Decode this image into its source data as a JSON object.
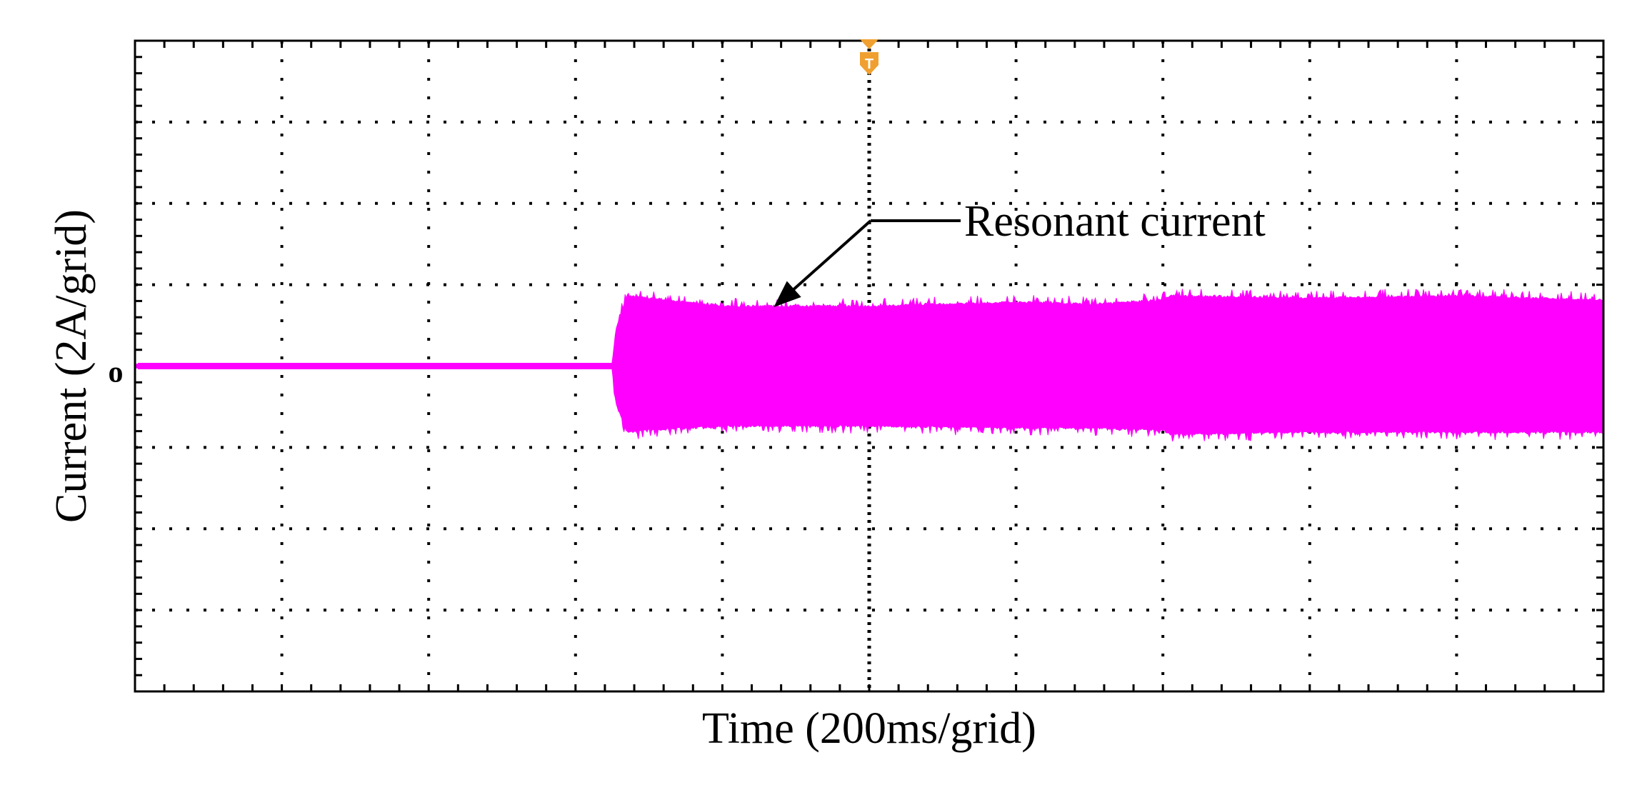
{
  "chart_data": {
    "type": "line",
    "title": "",
    "xlabel": "Time (200ms/grid)",
    "ylabel": "Current (2A/grid)",
    "x_divisions": 10,
    "y_divisions": 8,
    "xlim": [
      0,
      2000
    ],
    "ylim": [
      -8,
      8
    ],
    "x_unit": "ms",
    "y_unit": "A",
    "grid": true,
    "grid_style": "dotted",
    "series": [
      {
        "color": "#ff00ff",
        "envelope": {
          "x": [
            0,
            650,
            655,
            670,
            700,
            800,
            1000,
            1200,
            1300,
            1400,
            1410,
            1600,
            1800,
            2000
          ],
          "upper": [
            0.05,
            0.05,
            0.9,
            1.7,
            1.65,
            1.45,
            1.45,
            1.55,
            1.5,
            1.6,
            1.7,
            1.65,
            1.7,
            1.6
          ],
          "lower": [
            -0.05,
            -0.05,
            -0.9,
            -1.6,
            -1.55,
            -1.45,
            -1.45,
            -1.5,
            -1.5,
            -1.55,
            -1.65,
            -1.6,
            -1.6,
            -1.6
          ]
        }
      }
    ],
    "ground_marker": {
      "label": "o",
      "y": 0,
      "color": "#ff00ff"
    },
    "trigger_marker": {
      "label": "T",
      "x": 1000,
      "color": "#f0a030"
    },
    "annotations": [
      {
        "text": "Resonant current",
        "arrow_to": {
          "x": 870,
          "y": 1.45
        }
      }
    ]
  }
}
